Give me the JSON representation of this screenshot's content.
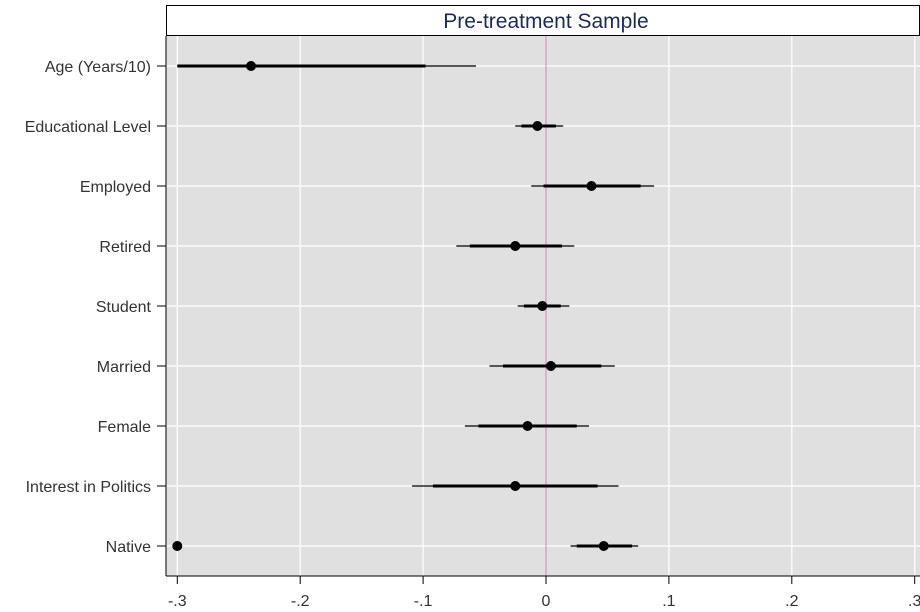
{
  "chart_data": {
    "type": "coefficient-plot",
    "title": "Pre-treatment Sample",
    "xlabel": "",
    "ylabel": "",
    "xlim": [
      -0.31,
      0.31
    ],
    "x_ticks": [
      -0.3,
      -0.2,
      -0.1,
      0,
      0.1,
      0.2,
      0.3
    ],
    "x_tick_labels": [
      "-.3",
      "-.2",
      "-.1",
      "0",
      ".1",
      ".2",
      ".3"
    ],
    "reference_line_x": 0,
    "grid": true,
    "categories": [
      "Age (Years/10)",
      "Educational Level",
      "Employed",
      "Retired",
      "Student",
      "Married",
      "Female",
      "Interest in Politics",
      "Native"
    ],
    "series": [
      {
        "values": [
          -0.24,
          -0.007,
          0.037,
          -0.025,
          -0.003,
          0.004,
          -0.015,
          -0.025,
          0.047
        ],
        "ci_inner": [
          [
            -0.3,
            -0.098
          ],
          [
            -0.02,
            0.008
          ],
          [
            -0.002,
            0.077
          ],
          [
            -0.062,
            0.013
          ],
          [
            -0.018,
            0.012
          ],
          [
            -0.035,
            0.045
          ],
          [
            -0.055,
            0.025
          ],
          [
            -0.092,
            0.042
          ],
          [
            0.025,
            0.07
          ]
        ],
        "ci_outer": [
          [
            -0.3,
            -0.057
          ],
          [
            -0.025,
            0.014
          ],
          [
            -0.012,
            0.088
          ],
          [
            -0.073,
            0.023
          ],
          [
            -0.023,
            0.019
          ],
          [
            -0.046,
            0.056
          ],
          [
            -0.066,
            0.035
          ],
          [
            -0.109,
            0.059
          ],
          [
            0.02,
            0.075
          ]
        ]
      }
    ],
    "colors": {
      "panel": "#e0e0e0",
      "grid": "#ffffff",
      "reference": "#d98cc0",
      "marker": "#000000",
      "title": "#1a2b5a"
    }
  }
}
